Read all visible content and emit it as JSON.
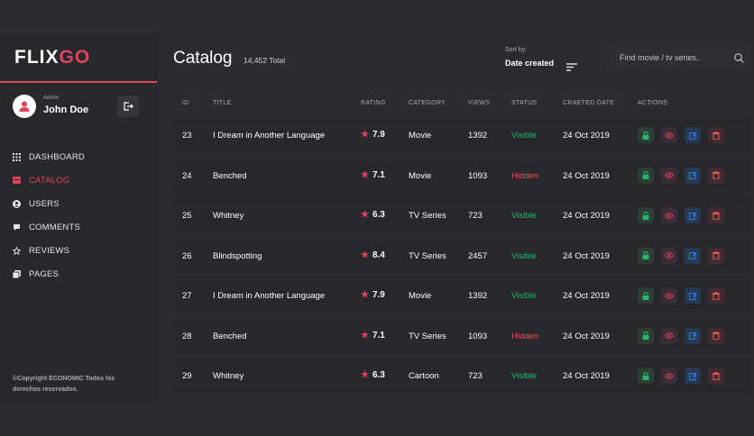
{
  "brand": {
    "part1": "FLIX",
    "part2": "GO"
  },
  "user": {
    "role": "Admin",
    "name": "John Doe"
  },
  "nav": [
    {
      "label": "DASHBOARD",
      "icon": "grid-icon",
      "active": false
    },
    {
      "label": "CATALOG",
      "icon": "catalog-icon",
      "active": true
    },
    {
      "label": "USERS",
      "icon": "users-icon",
      "active": false
    },
    {
      "label": "COMMENTS",
      "icon": "comments-icon",
      "active": false
    },
    {
      "label": "REVIEWS",
      "icon": "star-icon",
      "active": false
    },
    {
      "label": "PAGES",
      "icon": "pages-icon",
      "active": false
    }
  ],
  "copyright": "©Copyright ECONOMIC Todos los derechos reservados.",
  "header": {
    "title": "Catalog",
    "total": "14,452 Total",
    "sort_label": "Sort by:",
    "sort_value": "Date created",
    "search_placeholder": "Find movie / tv series.."
  },
  "table": {
    "columns": [
      "ID",
      "TITLE",
      "RATING",
      "CATEGORY",
      "VIEWS",
      "STATUS",
      "CRAETED DATE",
      "ACTIONS"
    ],
    "rows": [
      {
        "id": "23",
        "title": "I Dream in Another Language",
        "rating": "7.9",
        "category": "Movie",
        "views": "1392",
        "status": "Visible",
        "date": "24 Oct 2019"
      },
      {
        "id": "24",
        "title": "Benched",
        "rating": "7.1",
        "category": "Movie",
        "views": "1093",
        "status": "Hidden",
        "date": "24 Oct 2019"
      },
      {
        "id": "25",
        "title": "Whitney",
        "rating": "6.3",
        "category": "TV Series",
        "views": "723",
        "status": "Visible",
        "date": "24 Oct 2019"
      },
      {
        "id": "26",
        "title": "Blindspotting",
        "rating": "8.4",
        "category": "TV Series",
        "views": "2457",
        "status": "Visible",
        "date": "24 Oct 2019"
      },
      {
        "id": "27",
        "title": "I Dream in Another Language",
        "rating": "7.9",
        "category": "Movie",
        "views": "1392",
        "status": "Visible",
        "date": "24 Oct 2019"
      },
      {
        "id": "28",
        "title": "Benched",
        "rating": "7.1",
        "category": "TV Series",
        "views": "1093",
        "status": "Hidden",
        "date": "24 Oct 2019"
      },
      {
        "id": "29",
        "title": "Whitney",
        "rating": "6.3",
        "category": "Cartoon",
        "views": "723",
        "status": "Visible",
        "date": "24 Oct 2019"
      }
    ]
  },
  "colors": {
    "accent": "#e0435e",
    "visible": "#29b474",
    "hidden": "#eb5757",
    "lock": "#29b474",
    "view": "#e0435e",
    "edit": "#2f80ed",
    "delete": "#eb5757"
  }
}
